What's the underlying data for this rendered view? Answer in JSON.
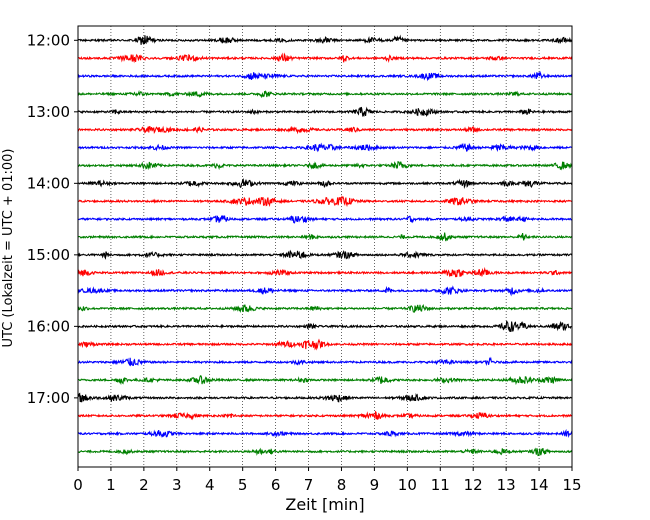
{
  "chart_data": {
    "type": "line",
    "title": "",
    "xlabel": "Zeit  [min]",
    "ylabel": "UTC (Lokalzeit = UTC + 01:00)",
    "xlim": [
      0,
      15
    ],
    "x_ticks": [
      0,
      1,
      2,
      3,
      4,
      5,
      6,
      7,
      8,
      9,
      10,
      11,
      12,
      13,
      14,
      15
    ],
    "y_range": [
      "11:48",
      "17:58"
    ],
    "y_tick_labels": [
      "12:00",
      "13:00",
      "14:00",
      "15:00",
      "16:00",
      "17:00"
    ],
    "grid": "vertical dotted lines at each minute",
    "color_cycle": [
      "#000000",
      "#ff0000",
      "#0000ff",
      "#008000"
    ],
    "series_description": "seismogram helicorder: one trace per 15-minute row",
    "rows": [
      {
        "start": "12:00",
        "color": "#000000"
      },
      {
        "start": "12:15",
        "color": "#ff0000"
      },
      {
        "start": "12:30",
        "color": "#0000ff"
      },
      {
        "start": "12:45",
        "color": "#008000"
      },
      {
        "start": "13:00",
        "color": "#000000"
      },
      {
        "start": "13:15",
        "color": "#ff0000"
      },
      {
        "start": "13:30",
        "color": "#0000ff"
      },
      {
        "start": "13:45",
        "color": "#008000"
      },
      {
        "start": "14:00",
        "color": "#000000"
      },
      {
        "start": "14:15",
        "color": "#ff0000"
      },
      {
        "start": "14:30",
        "color": "#0000ff"
      },
      {
        "start": "14:45",
        "color": "#008000"
      },
      {
        "start": "15:00",
        "color": "#000000"
      },
      {
        "start": "15:15",
        "color": "#ff0000"
      },
      {
        "start": "15:30",
        "color": "#0000ff"
      },
      {
        "start": "15:45",
        "color": "#008000"
      },
      {
        "start": "16:00",
        "color": "#000000"
      },
      {
        "start": "16:15",
        "color": "#ff0000"
      },
      {
        "start": "16:30",
        "color": "#0000ff"
      },
      {
        "start": "16:45",
        "color": "#008000"
      },
      {
        "start": "17:00",
        "color": "#000000"
      },
      {
        "start": "17:15",
        "color": "#ff0000"
      },
      {
        "start": "17:30",
        "color": "#0000ff"
      },
      {
        "start": "17:45",
        "color": "#008000"
      }
    ]
  }
}
